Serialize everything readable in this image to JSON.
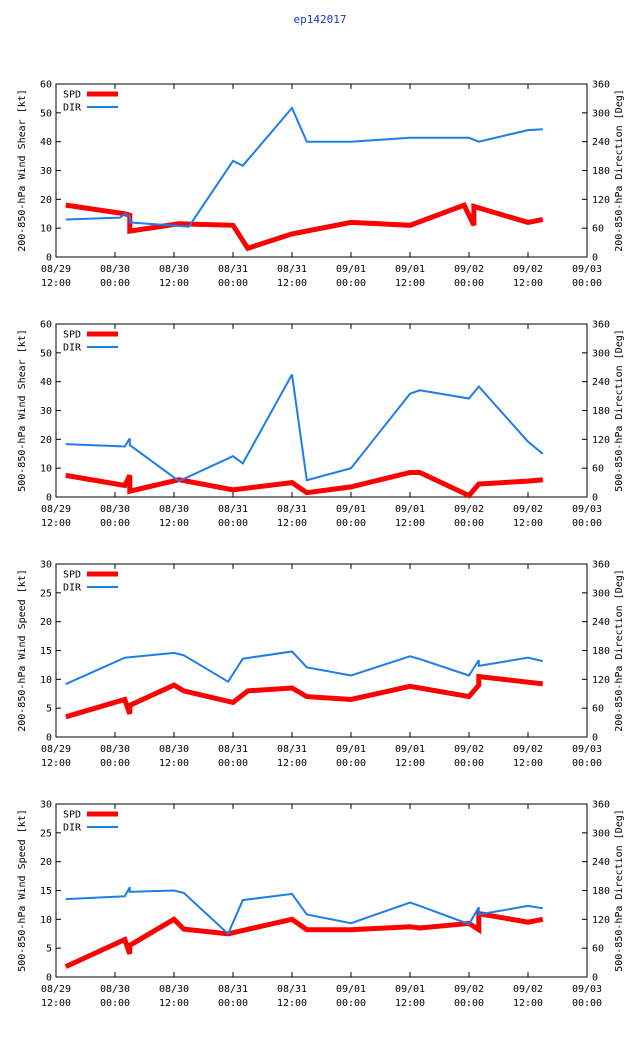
{
  "figure_title": "ep142017",
  "colors": {
    "spd": "#ff0000",
    "dir": "#1e7ee8",
    "title": "#1f35c8"
  },
  "chart_data": [
    {
      "type": "line",
      "ylabel": "200-850-hPa Wind Shear [kt]",
      "y2label": "200-850-hPa Direction [Deg]",
      "ylim": [
        0,
        60
      ],
      "yticks": [
        0,
        10,
        20,
        30,
        40,
        50,
        60
      ],
      "y2lim": [
        0,
        360
      ],
      "y2ticks": [
        0,
        60,
        120,
        180,
        240,
        300,
        360
      ],
      "xlim": [
        0,
        108
      ],
      "xticks": [
        {
          "x": 0,
          "l1": "08/29",
          "l2": "12:00"
        },
        {
          "x": 12,
          "l1": "08/30",
          "l2": "00:00"
        },
        {
          "x": 24,
          "l1": "08/30",
          "l2": "12:00"
        },
        {
          "x": 36,
          "l1": "08/31",
          "l2": "00:00"
        },
        {
          "x": 48,
          "l1": "08/31",
          "l2": "12:00"
        },
        {
          "x": 60,
          "l1": "09/01",
          "l2": "00:00"
        },
        {
          "x": 72,
          "l1": "09/01",
          "l2": "12:00"
        },
        {
          "x": 84,
          "l1": "09/02",
          "l2": "00:00"
        },
        {
          "x": 96,
          "l1": "09/02",
          "l2": "12:00"
        },
        {
          "x": 108,
          "l1": "09/03",
          "l2": "00:00"
        }
      ],
      "legend": [
        "SPD",
        "DIR"
      ],
      "series": [
        {
          "name": "SPD",
          "axis": "left",
          "points": [
            [
              2,
              18
            ],
            [
              14,
              15
            ],
            [
              15,
              14.5
            ],
            [
              15,
              9
            ],
            [
              25,
              11.5
            ],
            [
              36,
              11
            ],
            [
              39,
              3
            ],
            [
              48,
              8
            ],
            [
              60,
              12
            ],
            [
              72,
              11
            ],
            [
              83,
              18
            ],
            [
              85,
              11
            ],
            [
              85,
              17.5
            ],
            [
              96,
              12
            ],
            [
              99,
              13
            ]
          ]
        },
        {
          "name": "DIR",
          "axis": "right",
          "points": [
            [
              2,
              78
            ],
            [
              13,
              82
            ],
            [
              14,
              90
            ],
            [
              15,
              84
            ],
            [
              15,
              72
            ],
            [
              27,
              63
            ],
            [
              36,
              200
            ],
            [
              38,
              190
            ],
            [
              48,
              310
            ],
            [
              51,
              240
            ],
            [
              60,
              240
            ],
            [
              72,
              248
            ],
            [
              84,
              248
            ],
            [
              86,
              240
            ],
            [
              96,
              264
            ],
            [
              99,
              266
            ]
          ]
        }
      ]
    },
    {
      "type": "line",
      "ylabel": "500-850-hPa Wind Shear [kt]",
      "y2label": "500-850-hPa Direction [Deg]",
      "ylim": [
        0,
        60
      ],
      "yticks": [
        0,
        10,
        20,
        30,
        40,
        50,
        60
      ],
      "y2lim": [
        0,
        360
      ],
      "y2ticks": [
        0,
        60,
        120,
        180,
        240,
        300,
        360
      ],
      "xlim": [
        0,
        108
      ],
      "xticks": [
        {
          "x": 0,
          "l1": "08/29",
          "l2": "12:00"
        },
        {
          "x": 12,
          "l1": "08/30",
          "l2": "00:00"
        },
        {
          "x": 24,
          "l1": "08/30",
          "l2": "12:00"
        },
        {
          "x": 36,
          "l1": "08/31",
          "l2": "00:00"
        },
        {
          "x": 48,
          "l1": "08/31",
          "l2": "12:00"
        },
        {
          "x": 60,
          "l1": "09/01",
          "l2": "00:00"
        },
        {
          "x": 72,
          "l1": "09/01",
          "l2": "12:00"
        },
        {
          "x": 84,
          "l1": "09/02",
          "l2": "00:00"
        },
        {
          "x": 96,
          "l1": "09/02",
          "l2": "12:00"
        },
        {
          "x": 108,
          "l1": "09/03",
          "l2": "00:00"
        }
      ],
      "legend": [
        "SPD",
        "DIR"
      ],
      "series": [
        {
          "name": "SPD",
          "axis": "left",
          "points": [
            [
              2,
              7.5
            ],
            [
              14,
              4
            ],
            [
              15,
              7.5
            ],
            [
              15,
              2
            ],
            [
              25,
              6
            ],
            [
              36,
              2.5
            ],
            [
              48,
              5
            ],
            [
              51,
              1.5
            ],
            [
              60,
              3.5
            ],
            [
              72,
              8.5
            ],
            [
              74,
              8.5
            ],
            [
              84,
              0.5
            ],
            [
              86,
              4.5
            ],
            [
              96,
              5.5
            ],
            [
              99,
              6
            ]
          ]
        },
        {
          "name": "DIR",
          "axis": "right",
          "points": [
            [
              2,
              110
            ],
            [
              14,
              105
            ],
            [
              15,
              122
            ],
            [
              15,
              108
            ],
            [
              25,
              33
            ],
            [
              36,
              85
            ],
            [
              38,
              70
            ],
            [
              48,
              255
            ],
            [
              51,
              35
            ],
            [
              60,
              60
            ],
            [
              72,
              215
            ],
            [
              74,
              222
            ],
            [
              84,
              205
            ],
            [
              86,
              230
            ],
            [
              96,
              115
            ],
            [
              99,
              90
            ]
          ]
        }
      ]
    },
    {
      "type": "line",
      "ylabel": "200-850-hPa Wind Speed [kt]",
      "y2label": "200-850-hPa Direction [Deg]",
      "ylim": [
        0,
        30
      ],
      "yticks": [
        0,
        5,
        10,
        15,
        20,
        25,
        30
      ],
      "y2lim": [
        0,
        360
      ],
      "y2ticks": [
        0,
        60,
        120,
        180,
        240,
        300,
        360
      ],
      "xlim": [
        0,
        108
      ],
      "xticks": [
        {
          "x": 0,
          "l1": "08/29",
          "l2": "12:00"
        },
        {
          "x": 12,
          "l1": "08/30",
          "l2": "00:00"
        },
        {
          "x": 24,
          "l1": "08/30",
          "l2": "12:00"
        },
        {
          "x": 36,
          "l1": "08/31",
          "l2": "00:00"
        },
        {
          "x": 48,
          "l1": "08/31",
          "l2": "12:00"
        },
        {
          "x": 60,
          "l1": "09/01",
          "l2": "00:00"
        },
        {
          "x": 72,
          "l1": "09/01",
          "l2": "12:00"
        },
        {
          "x": 84,
          "l1": "09/02",
          "l2": "00:00"
        },
        {
          "x": 96,
          "l1": "09/02",
          "l2": "12:00"
        },
        {
          "x": 108,
          "l1": "09/03",
          "l2": "00:00"
        }
      ],
      "legend": [
        "SPD",
        "DIR"
      ],
      "series": [
        {
          "name": "SPD",
          "axis": "left",
          "points": [
            [
              2,
              3.5
            ],
            [
              14,
              6.5
            ],
            [
              15,
              4
            ],
            [
              15,
              5.5
            ],
            [
              24,
              9
            ],
            [
              26,
              8
            ],
            [
              36,
              6
            ],
            [
              39,
              8
            ],
            [
              48,
              8.5
            ],
            [
              51,
              7
            ],
            [
              60,
              6.5
            ],
            [
              72,
              8.8
            ],
            [
              74,
              8.5
            ],
            [
              84,
              7
            ],
            [
              86,
              9
            ],
            [
              86,
              10.5
            ],
            [
              96,
              9.5
            ],
            [
              99,
              9.2
            ]
          ]
        },
        {
          "name": "DIR",
          "axis": "right",
          "points": [
            [
              2,
              110
            ],
            [
              14,
              165
            ],
            [
              24,
              175
            ],
            [
              26,
              170
            ],
            [
              35,
              115
            ],
            [
              38,
              163
            ],
            [
              48,
              178
            ],
            [
              51,
              145
            ],
            [
              60,
              128
            ],
            [
              72,
              168
            ],
            [
              74,
              162
            ],
            [
              84,
              128
            ],
            [
              86,
              160
            ],
            [
              86,
              148
            ],
            [
              96,
              165
            ],
            [
              99,
              158
            ]
          ]
        }
      ]
    },
    {
      "type": "line",
      "ylabel": "500-850-hPa Wind Speed [kt]",
      "y2label": "500-850-hPa Direction [Deg]",
      "ylim": [
        0,
        30
      ],
      "yticks": [
        0,
        5,
        10,
        15,
        20,
        25,
        30
      ],
      "y2lim": [
        0,
        360
      ],
      "y2ticks": [
        0,
        60,
        120,
        180,
        240,
        300,
        360
      ],
      "xlim": [
        0,
        108
      ],
      "xticks": [
        {
          "x": 0,
          "l1": "08/29",
          "l2": "12:00"
        },
        {
          "x": 12,
          "l1": "08/30",
          "l2": "00:00"
        },
        {
          "x": 24,
          "l1": "08/30",
          "l2": "12:00"
        },
        {
          "x": 36,
          "l1": "08/31",
          "l2": "00:00"
        },
        {
          "x": 48,
          "l1": "08/31",
          "l2": "12:00"
        },
        {
          "x": 60,
          "l1": "09/01",
          "l2": "00:00"
        },
        {
          "x": 72,
          "l1": "09/01",
          "l2": "12:00"
        },
        {
          "x": 84,
          "l1": "09/02",
          "l2": "00:00"
        },
        {
          "x": 96,
          "l1": "09/02",
          "l2": "12:00"
        },
        {
          "x": 108,
          "l1": "09/03",
          "l2": "00:00"
        }
      ],
      "legend": [
        "SPD",
        "DIR"
      ],
      "series": [
        {
          "name": "SPD",
          "axis": "left",
          "points": [
            [
              2,
              1.8
            ],
            [
              14,
              6.5
            ],
            [
              15,
              4
            ],
            [
              15,
              5.5
            ],
            [
              24,
              10
            ],
            [
              26,
              8.3
            ],
            [
              35,
              7.5
            ],
            [
              48,
              10
            ],
            [
              51,
              8.2
            ],
            [
              60,
              8.2
            ],
            [
              72,
              8.7
            ],
            [
              74,
              8.5
            ],
            [
              84,
              9.3
            ],
            [
              86,
              8.2
            ],
            [
              86,
              11
            ],
            [
              96,
              9.5
            ],
            [
              99,
              10
            ]
          ]
        },
        {
          "name": "DIR",
          "axis": "right",
          "points": [
            [
              2,
              162
            ],
            [
              14,
              168
            ],
            [
              15,
              187
            ],
            [
              15,
              177
            ],
            [
              24,
              180
            ],
            [
              26,
              175
            ],
            [
              35,
              90
            ],
            [
              38,
              160
            ],
            [
              48,
              173
            ],
            [
              51,
              130
            ],
            [
              60,
              112
            ],
            [
              72,
              155
            ],
            [
              74,
              148
            ],
            [
              84,
              110
            ],
            [
              86,
              145
            ],
            [
              86,
              130
            ],
            [
              96,
              148
            ],
            [
              99,
              143
            ]
          ]
        }
      ]
    }
  ]
}
